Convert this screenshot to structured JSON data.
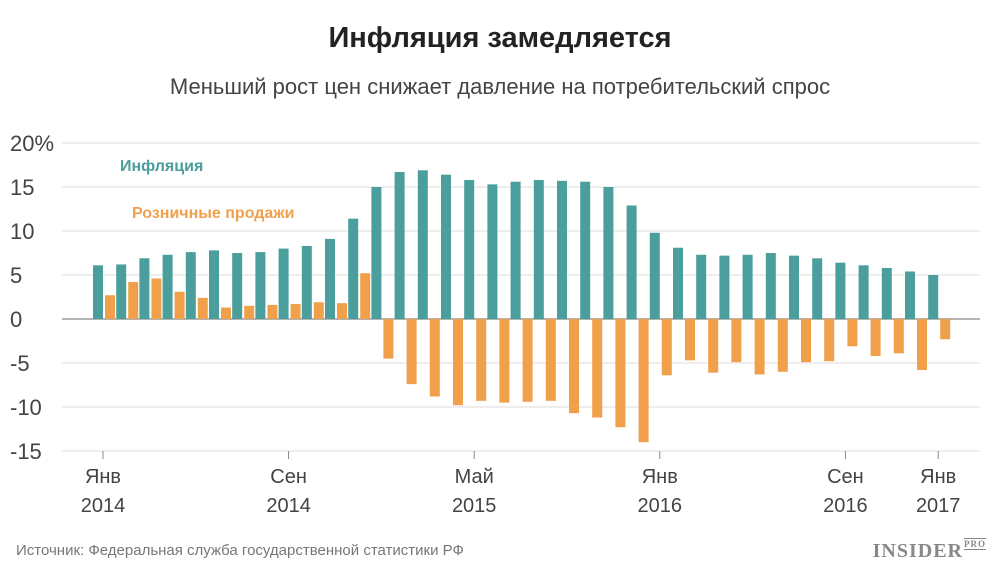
{
  "title": "Инфляция замедляется",
  "subtitle": "Меньший рост цен снижает давление на потребительский спрос",
  "source": "Источник: Федеральная служба государственной статистики РФ",
  "brand": {
    "name": "INSIDER",
    "suffix": "PRO"
  },
  "colors": {
    "inflation": "#4a9e9c",
    "retail": "#f0a04b",
    "grid": "#dddddd",
    "axis": "#999999"
  },
  "chart_data": {
    "type": "bar",
    "ylim": [
      -15,
      20
    ],
    "yticks": [
      {
        "value": 20,
        "label": "20%"
      },
      {
        "value": 15,
        "label": "15"
      },
      {
        "value": 10,
        "label": "10"
      },
      {
        "value": 5,
        "label": "5"
      },
      {
        "value": 0,
        "label": "0"
      },
      {
        "value": -5,
        "label": "-5"
      },
      {
        "value": -10,
        "label": "-10"
      },
      {
        "value": -15,
        "label": "-15"
      }
    ],
    "xticks": [
      {
        "index": 0,
        "month": "Янв",
        "year": "2014"
      },
      {
        "index": 8,
        "month": "Сен",
        "year": "2014"
      },
      {
        "index": 16,
        "month": "Май",
        "year": "2015"
      },
      {
        "index": 24,
        "month": "Янв",
        "year": "2016"
      },
      {
        "index": 32,
        "month": "Сен",
        "year": "2016"
      },
      {
        "index": 36,
        "month": "Янв",
        "year": "2017"
      }
    ],
    "legend_placement": "top-left",
    "grid": true,
    "series": [
      {
        "name": "Инфляция",
        "values": [
          6.1,
          6.2,
          6.9,
          7.3,
          7.6,
          7.8,
          7.5,
          7.6,
          8.0,
          8.3,
          9.1,
          11.4,
          15.0,
          16.7,
          16.9,
          16.4,
          15.8,
          15.3,
          15.6,
          15.8,
          15.7,
          15.6,
          15.0,
          12.9,
          9.8,
          8.1,
          7.3,
          7.2,
          7.3,
          7.5,
          7.2,
          6.9,
          6.4,
          6.1,
          5.8,
          5.4,
          5.0
        ],
        "color": "#4a9e9c"
      },
      {
        "name": "Розничные продажи",
        "values": [
          2.7,
          4.2,
          4.6,
          3.1,
          2.4,
          1.3,
          1.5,
          1.6,
          1.7,
          1.9,
          1.8,
          5.2,
          -4.5,
          -7.4,
          -8.8,
          -9.8,
          -9.3,
          -9.5,
          -9.4,
          -9.3,
          -10.7,
          -11.2,
          -12.3,
          -14.0,
          -6.4,
          -4.7,
          -6.1,
          -4.9,
          -6.3,
          -6.0,
          -4.9,
          -4.8,
          -3.1,
          -4.2,
          -3.9,
          -5.8,
          -2.3
        ],
        "color": "#f0a04b"
      }
    ]
  }
}
